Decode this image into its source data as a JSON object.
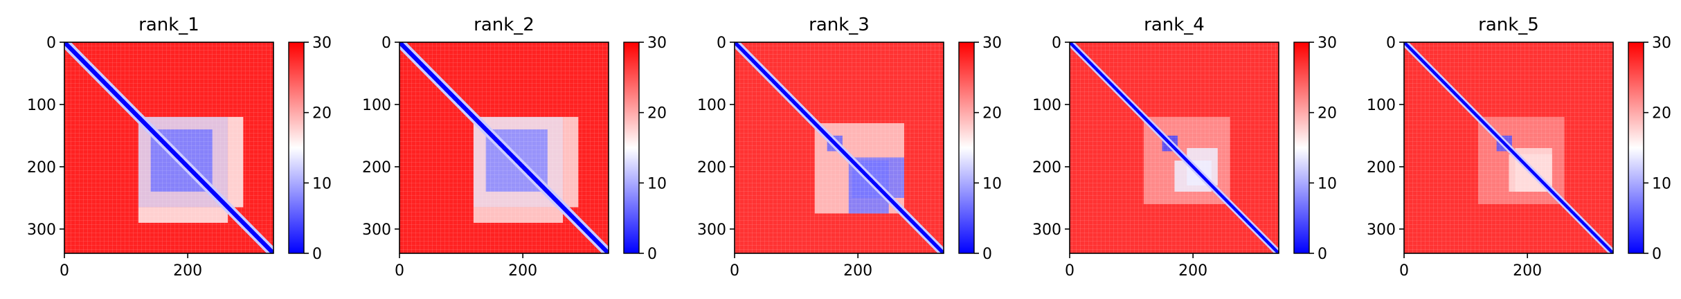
{
  "chart_data": {
    "type": "heatmap",
    "colormap": {
      "name": "bwr",
      "low_color": "#0000ff",
      "mid_color": "#ffffff",
      "high_color": "#ff0000",
      "vmin": 0,
      "vmax": 30,
      "colorbar_ticks": [
        0,
        10,
        20,
        30
      ]
    },
    "matrix_size": 339,
    "xlim": [
      0,
      339
    ],
    "ylim": [
      339,
      0
    ],
    "x_ticks": [
      0,
      200
    ],
    "y_ticks": [
      0,
      100,
      200,
      300
    ],
    "panels": [
      {
        "title": "rank_1",
        "background_value": 28,
        "diagonal_width": 7,
        "blocks": [
          {
            "x": [
              120,
              265
            ],
            "y": [
              120,
              265
            ],
            "value": 13
          },
          {
            "x": [
              140,
              240
            ],
            "y": [
              140,
              240
            ],
            "value": 7
          },
          {
            "x": [
              120,
              265
            ],
            "y": [
              265,
              290
            ],
            "value": 16
          }
        ]
      },
      {
        "title": "rank_2",
        "background_value": 28,
        "diagonal_width": 7,
        "blocks": [
          {
            "x": [
              120,
              265
            ],
            "y": [
              120,
              265
            ],
            "value": 14
          },
          {
            "x": [
              140,
              240
            ],
            "y": [
              140,
              240
            ],
            "value": 8
          },
          {
            "x": [
              120,
              265
            ],
            "y": [
              265,
              290
            ],
            "value": 17
          }
        ]
      },
      {
        "title": "rank_3",
        "background_value": 27,
        "diagonal_width": 6,
        "blocks": [
          {
            "x": [
              130,
              275
            ],
            "y": [
              130,
              275
            ],
            "value": 18
          },
          {
            "x": [
              190,
              275
            ],
            "y": [
              185,
              250
            ],
            "value": 7
          },
          {
            "x": [
              150,
              175
            ],
            "y": [
              150,
              175
            ],
            "value": 6
          }
        ]
      },
      {
        "title": "rank_4",
        "background_value": 27,
        "diagonal_width": 5,
        "blocks": [
          {
            "x": [
              120,
              260
            ],
            "y": [
              120,
              260
            ],
            "value": 21
          },
          {
            "x": [
              150,
              175
            ],
            "y": [
              150,
              175
            ],
            "value": 4
          },
          {
            "x": [
              190,
              240
            ],
            "y": [
              170,
              230
            ],
            "value": 14
          }
        ]
      },
      {
        "title": "rank_5",
        "background_value": 27,
        "diagonal_width": 5,
        "blocks": [
          {
            "x": [
              120,
              260
            ],
            "y": [
              120,
              260
            ],
            "value": 22
          },
          {
            "x": [
              150,
              175
            ],
            "y": [
              150,
              175
            ],
            "value": 5
          },
          {
            "x": [
              180,
              240
            ],
            "y": [
              170,
              240
            ],
            "value": 17
          }
        ]
      }
    ]
  }
}
